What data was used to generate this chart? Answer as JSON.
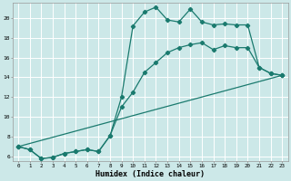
{
  "xlabel": "Humidex (Indice chaleur)",
  "bg_color": "#cce8e8",
  "grid_color": "#ffffff",
  "line_color": "#1a7a6e",
  "xlim": [
    -0.5,
    23.5
  ],
  "ylim": [
    5.5,
    21.5
  ],
  "xticks": [
    0,
    1,
    2,
    3,
    4,
    5,
    6,
    7,
    8,
    9,
    10,
    11,
    12,
    13,
    14,
    15,
    16,
    17,
    18,
    19,
    20,
    21,
    22,
    23
  ],
  "yticks": [
    6,
    8,
    10,
    12,
    14,
    16,
    18,
    20
  ],
  "line1_x": [
    0,
    1,
    2,
    3,
    4,
    5,
    6,
    7,
    8,
    9,
    10,
    11,
    12,
    13,
    14,
    15,
    16,
    17,
    18,
    19,
    20,
    21,
    22,
    23
  ],
  "line1_y": [
    7.0,
    6.7,
    5.8,
    5.9,
    6.3,
    6.5,
    6.7,
    6.5,
    8.1,
    12.0,
    19.2,
    20.6,
    21.1,
    19.8,
    19.6,
    20.9,
    19.6,
    19.3,
    19.4,
    19.3,
    19.3,
    15.0,
    14.4,
    14.2
  ],
  "line2_x": [
    0,
    1,
    2,
    3,
    4,
    5,
    6,
    7,
    8,
    9,
    10,
    11,
    12,
    13,
    14,
    15,
    16,
    17,
    18,
    19,
    20,
    21,
    22,
    23
  ],
  "line2_y": [
    7.0,
    6.7,
    5.8,
    5.9,
    6.3,
    6.5,
    6.7,
    6.5,
    8.1,
    11.0,
    12.5,
    14.5,
    15.5,
    16.5,
    17.0,
    17.3,
    17.5,
    16.8,
    17.2,
    17.0,
    17.0,
    15.0,
    14.4,
    14.2
  ],
  "line3_x": [
    0,
    23
  ],
  "line3_y": [
    7.0,
    14.2
  ]
}
